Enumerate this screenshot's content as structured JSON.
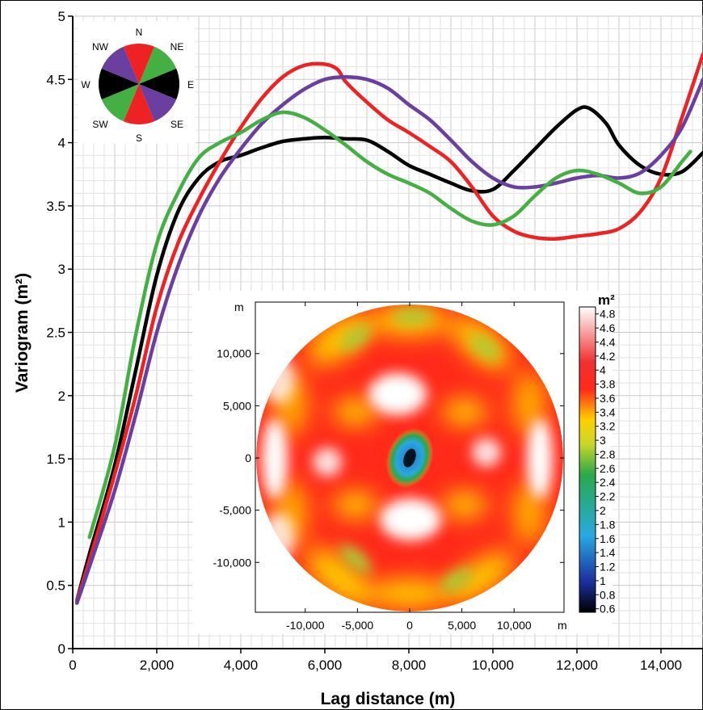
{
  "chart_data": [
    {
      "type": "line",
      "xlabel": "Lag distance (m)",
      "ylabel": "Variogram (m²)",
      "xlim": [
        0,
        15000
      ],
      "ylim": [
        0,
        5
      ],
      "x_ticks": [
        "0",
        "2,000",
        "4,000",
        "6,000",
        "8,000",
        "10,000",
        "12,000",
        "14,000"
      ],
      "x_tick_values": [
        0,
        2000,
        4000,
        6000,
        8000,
        10000,
        12000,
        14000
      ],
      "y_ticks": [
        "0",
        "0.5",
        "1",
        "1.5",
        "2",
        "2.5",
        "3",
        "3.5",
        "4",
        "4.5",
        "5"
      ],
      "y_tick_values": [
        0,
        0.5,
        1,
        1.5,
        2,
        2.5,
        3,
        3.5,
        4,
        4.5,
        5
      ],
      "grid": true,
      "series": [
        {
          "direction": "W-E",
          "color": "#000000",
          "points": [
            [
              100,
              0.38
            ],
            [
              400,
              0.75
            ],
            [
              1000,
              1.45
            ],
            [
              1500,
              2.2
            ],
            [
              2000,
              2.95
            ],
            [
              2500,
              3.45
            ],
            [
              3000,
              3.72
            ],
            [
              3500,
              3.85
            ],
            [
              4000,
              3.9
            ],
            [
              4500,
              3.96
            ],
            [
              5000,
              4.01
            ],
            [
              5500,
              4.03
            ],
            [
              6000,
              4.04
            ],
            [
              6500,
              4.03
            ],
            [
              7000,
              4.02
            ],
            [
              7500,
              3.93
            ],
            [
              8000,
              3.82
            ],
            [
              8500,
              3.75
            ],
            [
              9000,
              3.68
            ],
            [
              9500,
              3.62
            ],
            [
              10000,
              3.63
            ],
            [
              10500,
              3.78
            ],
            [
              11000,
              3.95
            ],
            [
              11500,
              4.12
            ],
            [
              12000,
              4.26
            ],
            [
              12300,
              4.27
            ],
            [
              12700,
              4.15
            ],
            [
              13000,
              3.98
            ],
            [
              13500,
              3.82
            ],
            [
              14000,
              3.75
            ],
            [
              14500,
              3.77
            ],
            [
              15000,
              3.92
            ]
          ]
        },
        {
          "direction": "N-S",
          "color": "#ee2222",
          "points": [
            [
              100,
              0.38
            ],
            [
              400,
              0.7
            ],
            [
              1000,
              1.38
            ],
            [
              1500,
              2.0
            ],
            [
              2000,
              2.7
            ],
            [
              2500,
              3.2
            ],
            [
              3000,
              3.55
            ],
            [
              3500,
              3.85
            ],
            [
              4000,
              4.12
            ],
            [
              4500,
              4.35
            ],
            [
              5000,
              4.52
            ],
            [
              5500,
              4.61
            ],
            [
              6000,
              4.62
            ],
            [
              6300,
              4.58
            ],
            [
              6500,
              4.48
            ],
            [
              7000,
              4.32
            ],
            [
              7500,
              4.18
            ],
            [
              8000,
              4.08
            ],
            [
              8500,
              3.97
            ],
            [
              9000,
              3.85
            ],
            [
              9500,
              3.65
            ],
            [
              10000,
              3.42
            ],
            [
              10500,
              3.3
            ],
            [
              11000,
              3.25
            ],
            [
              11500,
              3.24
            ],
            [
              12000,
              3.26
            ],
            [
              12500,
              3.28
            ],
            [
              13000,
              3.32
            ],
            [
              13500,
              3.45
            ],
            [
              14000,
              3.72
            ],
            [
              14500,
              4.2
            ],
            [
              15000,
              4.7
            ]
          ]
        },
        {
          "direction": "NW-SE",
          "color": "#6a3fa0",
          "points": [
            [
              100,
              0.36
            ],
            [
              400,
              0.65
            ],
            [
              1000,
              1.25
            ],
            [
              1500,
              1.85
            ],
            [
              2000,
              2.5
            ],
            [
              2500,
              3.02
            ],
            [
              3000,
              3.42
            ],
            [
              3500,
              3.72
            ],
            [
              4000,
              3.95
            ],
            [
              4500,
              4.15
            ],
            [
              5000,
              4.3
            ],
            [
              5500,
              4.42
            ],
            [
              6000,
              4.5
            ],
            [
              6500,
              4.52
            ],
            [
              7000,
              4.5
            ],
            [
              7500,
              4.43
            ],
            [
              8000,
              4.3
            ],
            [
              8500,
              4.18
            ],
            [
              9000,
              4.02
            ],
            [
              9500,
              3.85
            ],
            [
              10000,
              3.72
            ],
            [
              10500,
              3.65
            ],
            [
              11000,
              3.65
            ],
            [
              11500,
              3.68
            ],
            [
              12000,
              3.72
            ],
            [
              12500,
              3.74
            ],
            [
              13000,
              3.72
            ],
            [
              13500,
              3.76
            ],
            [
              14000,
              3.9
            ],
            [
              14500,
              4.12
            ],
            [
              15000,
              4.5
            ]
          ]
        },
        {
          "direction": "SW-NE",
          "color": "#44b044",
          "points": [
            [
              400,
              0.88
            ],
            [
              1000,
              1.6
            ],
            [
              1500,
              2.48
            ],
            [
              2000,
              3.2
            ],
            [
              2500,
              3.6
            ],
            [
              3000,
              3.88
            ],
            [
              3500,
              4.0
            ],
            [
              4000,
              4.08
            ],
            [
              4500,
              4.18
            ],
            [
              5000,
              4.24
            ],
            [
              5500,
              4.2
            ],
            [
              6000,
              4.1
            ],
            [
              6500,
              3.98
            ],
            [
              7000,
              3.85
            ],
            [
              7500,
              3.75
            ],
            [
              8000,
              3.68
            ],
            [
              8500,
              3.6
            ],
            [
              9000,
              3.48
            ],
            [
              9500,
              3.38
            ],
            [
              10000,
              3.35
            ],
            [
              10500,
              3.42
            ],
            [
              11000,
              3.58
            ],
            [
              11500,
              3.72
            ],
            [
              12000,
              3.78
            ],
            [
              12500,
              3.75
            ],
            [
              13000,
              3.68
            ],
            [
              13500,
              3.6
            ],
            [
              14000,
              3.65
            ],
            [
              14500,
              3.85
            ],
            [
              14700,
              3.93
            ]
          ]
        }
      ]
    },
    {
      "type": "heatmap",
      "x_ticks": [
        "-10,000",
        "-5,000",
        "0",
        "5,000",
        "10,000"
      ],
      "x_tick_values": [
        -10000,
        -5000,
        0,
        5000,
        10000
      ],
      "y_ticks": [
        "10,000",
        "5,000",
        "0",
        "-5,000",
        "-10,000"
      ],
      "y_tick_values": [
        10000,
        5000,
        0,
        -5000,
        -10000
      ],
      "x_unit": "m",
      "y_unit": "m",
      "colorbar_title": "m²",
      "colorbar_ticks": [
        "4.8",
        "4.6",
        "4.4",
        "4.2",
        "4",
        "3.8",
        "3.6",
        "3.4",
        "3.2",
        "3",
        "2.8",
        "2.6",
        "2.4",
        "2.2",
        "2",
        "1.8",
        "1.6",
        "1.4",
        "1.2",
        "1",
        "0.8",
        "0.6"
      ],
      "colorbar_range": [
        0.6,
        4.9
      ],
      "colorbar_colors": [
        "#000000",
        "#1a2f9e",
        "#2aa8e0",
        "#2aa84a",
        "#c8d62a",
        "#ffd000",
        "#ff2a1a",
        "#ffffff"
      ]
    }
  ],
  "rose": {
    "labels": {
      "n": "N",
      "ne": "NE",
      "e": "E",
      "se": "SE",
      "s": "S",
      "sw": "SW",
      "w": "W",
      "nw": "NW"
    },
    "colors": {
      "ns": "#ee2222",
      "nesw": "#44b044",
      "ew": "#000000",
      "nwse": "#6a3fa0"
    }
  }
}
